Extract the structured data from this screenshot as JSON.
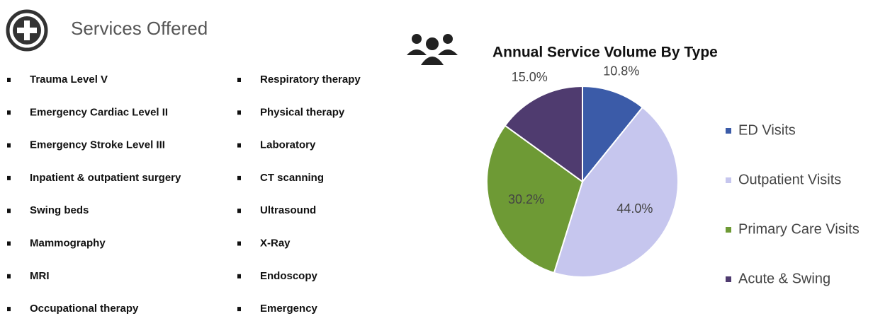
{
  "header": {
    "title": "Services Offered"
  },
  "services": {
    "column1": [
      "Trauma Level V",
      "Emergency Cardiac Level II",
      "Emergency Stroke Level III",
      "Inpatient & outpatient surgery",
      "Swing beds",
      "Mammography",
      "MRI",
      "Occupational therapy"
    ],
    "column2": [
      "Respiratory therapy",
      "Physical therapy",
      "Laboratory",
      "CT scanning",
      "Ultrasound",
      "X-Ray",
      "Endoscopy",
      "Emergency"
    ]
  },
  "chart_data": {
    "type": "pie",
    "title": "Annual Service Volume By Type",
    "categories": [
      "ED Visits",
      "Outpatient Visits",
      "Primary Care Visits",
      "Acute & Swing"
    ],
    "values": [
      10.8,
      44,
      30.2,
      15
    ],
    "value_labels": [
      "10.8%",
      "44.0%",
      "30.2%",
      "15.0%"
    ],
    "colors": [
      "#3b5ba8",
      "#c6c6ee",
      "#6e9a35",
      "#4f3b6f"
    ],
    "legend": "right"
  }
}
